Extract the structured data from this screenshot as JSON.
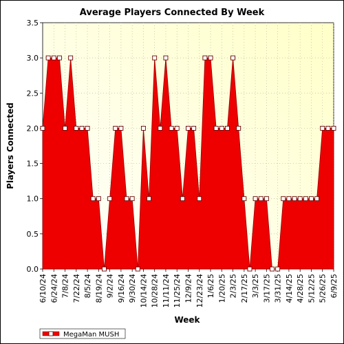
{
  "chart_data": {
    "type": "area",
    "title": "Average Players Connected By Week",
    "xlabel": "Week",
    "ylabel": "Players Connected",
    "ylim": [
      0,
      3.5
    ],
    "yticks": [
      "0.0",
      "0.5",
      "1.0",
      "1.5",
      "2.0",
      "2.5",
      "3.0",
      "3.5"
    ],
    "xtick_labels": [
      "6/10/24",
      "6/24/24",
      "7/8/24",
      "7/22/24",
      "8/5/24",
      "8/19/24",
      "9/2/24",
      "9/16/24",
      "9/30/24",
      "10/14/24",
      "10/28/24",
      "11/11/24",
      "11/25/24",
      "12/9/24",
      "12/23/24",
      "1/6/25",
      "1/20/25",
      "2/3/25",
      "2/17/25",
      "3/3/25",
      "3/17/25",
      "3/31/25",
      "4/14/25",
      "4/28/25",
      "5/12/25",
      "5/26/25",
      "6/9/25"
    ],
    "grid": true,
    "legend_position": "bottom-left",
    "series": [
      {
        "name": "MegaMan MUSH",
        "color": "#ee0000",
        "values": [
          2,
          3,
          3,
          3,
          2,
          3,
          2,
          2,
          2,
          1,
          1,
          0,
          1,
          2,
          2,
          1,
          1,
          0,
          2,
          1,
          3,
          2,
          3,
          2,
          2,
          1,
          2,
          2,
          1,
          3,
          3,
          2,
          2,
          2,
          3,
          2,
          1,
          0,
          1,
          1,
          1,
          0,
          0,
          1,
          1,
          1,
          1,
          1,
          1,
          1,
          2,
          2,
          2
        ]
      }
    ]
  }
}
